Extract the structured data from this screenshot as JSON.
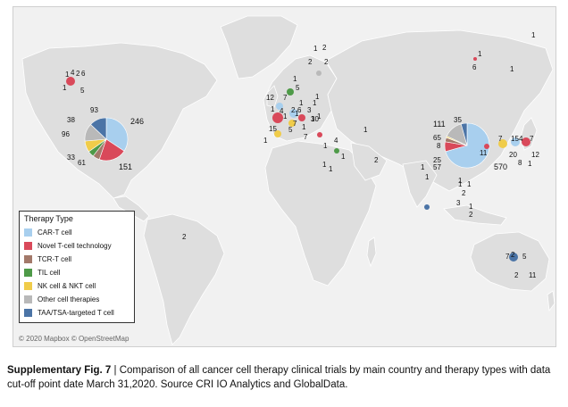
{
  "legend": {
    "title": "Therapy Type",
    "items": [
      {
        "label": "CAR-T cell",
        "color": "#a8cfee"
      },
      {
        "label": "Novel T-cell technology",
        "color": "#d9495a"
      },
      {
        "label": "TCR-T cell",
        "color": "#a3796a"
      },
      {
        "label": "TIL cell",
        "color": "#4e9a48"
      },
      {
        "label": "NK cell & NKT cell",
        "color": "#f0cc4a"
      },
      {
        "label": "Other cell therapies",
        "color": "#b9b9b9"
      },
      {
        "label": "TAA/TSA-targeted T cell",
        "color": "#4b74a6"
      }
    ]
  },
  "map": {
    "attribution": "© 2020 Mapbox © OpenStreetMap",
    "labels": [
      "1",
      "4",
      "2",
      "6",
      "1",
      "5",
      "93",
      "246",
      "38",
      "96",
      "33",
      "61",
      "151",
      "1",
      "2",
      "2",
      "2",
      "1",
      "6",
      "1",
      "5",
      "12",
      "7",
      "1",
      "1",
      "1",
      "4",
      "1",
      "2",
      "1",
      "3",
      "15",
      "7",
      "6",
      "3",
      "1",
      "10",
      "5",
      "7",
      "1",
      "1",
      "1",
      "1",
      "4",
      "1",
      "1",
      "1",
      "2",
      "1",
      "111",
      "35",
      "65",
      "8",
      "25",
      "57",
      "1",
      "1",
      "570",
      "7",
      "15",
      "4",
      "7",
      "11",
      "20",
      "12",
      "8",
      "1",
      "1",
      "2",
      "3",
      "1",
      "1",
      "2",
      "7",
      "2",
      "5",
      "2",
      "11",
      "1",
      "1",
      "1",
      "2"
    ]
  },
  "caption": {
    "label": "Supplementary Fig. 7",
    "separator": " | ",
    "text": "Comparison of all cancer cell therapy clinical trials by main country and therapy types with data cut-off point date March 31,2020. Source CRI IO Analytics and GlobalData."
  },
  "chart_data": {
    "type": "pie",
    "series_order": [
      "CAR-T cell",
      "Novel T-cell technology",
      "TCR-T cell",
      "TIL cell",
      "NK cell & NKT cell",
      "Other cell therapies",
      "TAA/TSA-targeted T cell"
    ],
    "pies": [
      {
        "values": {
          "CAR-T cell": 246,
          "Novel T-cell technology": 151,
          "TIL cell": 33,
          "NK cell & NKT cell": 61,
          "Other cell therapies": 96,
          "TAA/TSA-targeted T cell": 93,
          "TCR-T cell": 38
        }
      },
      {
        "values": {
          "CAR-T cell": 570,
          "Novel T-cell technology": 57,
          "TCR-T cell": 25,
          "NK cell & NKT cell": 8,
          "Other cell therapies": 111,
          "TAA/TSA-targeted T cell": 35,
          "TIL cell": 1
        }
      }
    ]
  }
}
